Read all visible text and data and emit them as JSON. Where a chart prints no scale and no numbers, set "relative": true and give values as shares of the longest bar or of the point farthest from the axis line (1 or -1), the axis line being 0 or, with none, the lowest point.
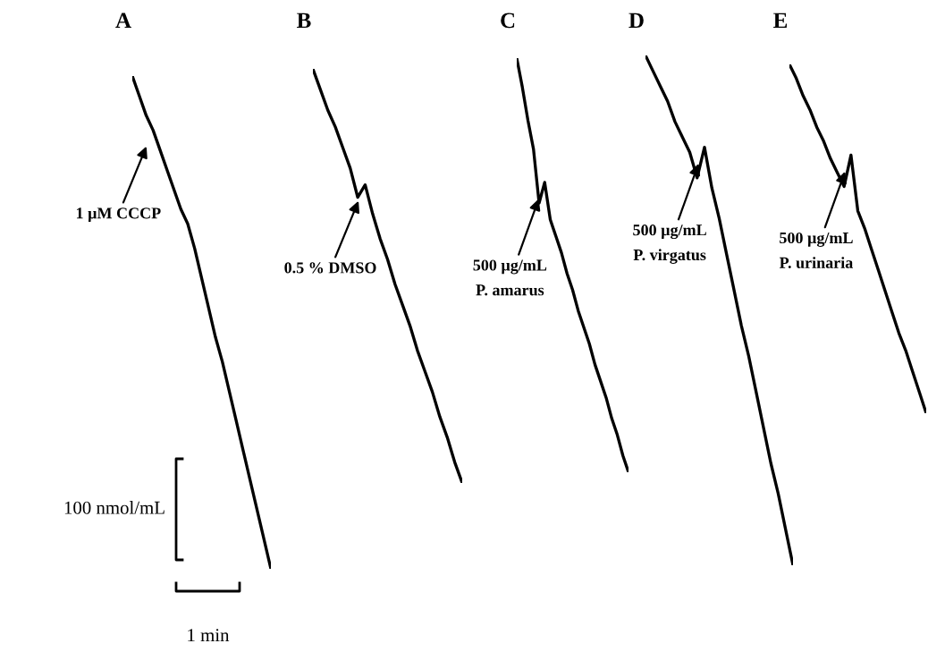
{
  "chart_data": [
    {
      "type": "line",
      "relative": true,
      "categories": [
        null,
        null,
        null,
        null,
        null,
        null,
        null,
        null,
        null,
        null,
        null,
        null,
        null,
        null,
        null,
        null,
        null,
        null,
        null,
        null,
        null
      ],
      "series": [
        {
          "name": "A",
          "color": "#000000",
          "values": [
            1.0,
            0.96,
            0.92,
            0.89,
            0.85,
            0.81,
            0.77,
            0.73,
            0.7,
            0.65,
            0.59,
            0.53,
            0.47,
            0.42,
            0.36,
            0.3,
            0.24,
            0.18,
            0.12,
            0.06,
            0.0
          ]
        }
      ],
      "annotations": [
        "1 µM CCCP"
      ]
    },
    {
      "type": "line",
      "relative": true,
      "categories": [
        null,
        null,
        null,
        null,
        null,
        null,
        null,
        null,
        null,
        null,
        null,
        null,
        null,
        null,
        null,
        null,
        null,
        null,
        null,
        null,
        null
      ],
      "series": [
        {
          "name": "B",
          "color": "#000000",
          "values": [
            1.0,
            0.95,
            0.9,
            0.86,
            0.81,
            0.76,
            0.69,
            0.72,
            0.65,
            0.59,
            0.54,
            0.48,
            0.43,
            0.38,
            0.32,
            0.27,
            0.22,
            0.16,
            0.11,
            0.05,
            0.0
          ]
        }
      ],
      "annotations": [
        "0.5 % DMSO"
      ]
    },
    {
      "type": "line",
      "relative": true,
      "categories": [
        null,
        null,
        null,
        null,
        null,
        null,
        null,
        null,
        null,
        null,
        null,
        null,
        null,
        null,
        null,
        null,
        null,
        null,
        null,
        null,
        null
      ],
      "series": [
        {
          "name": "C",
          "color": "#000000",
          "values": [
            1.0,
            0.93,
            0.85,
            0.78,
            0.65,
            0.7,
            0.61,
            0.57,
            0.53,
            0.48,
            0.44,
            0.39,
            0.35,
            0.31,
            0.26,
            0.22,
            0.18,
            0.13,
            0.09,
            0.04,
            0.0
          ]
        }
      ],
      "annotations": [
        "500 µg/mL\nP. amarus"
      ]
    },
    {
      "type": "line",
      "relative": true,
      "categories": [
        null,
        null,
        null,
        null,
        null,
        null,
        null,
        null,
        null,
        null,
        null,
        null,
        null,
        null,
        null,
        null,
        null,
        null,
        null,
        null,
        null
      ],
      "series": [
        {
          "name": "D",
          "color": "#000000",
          "values": [
            1.0,
            0.97,
            0.94,
            0.91,
            0.87,
            0.84,
            0.81,
            0.76,
            0.82,
            0.74,
            0.68,
            0.61,
            0.54,
            0.47,
            0.41,
            0.34,
            0.27,
            0.2,
            0.14,
            0.07,
            0.0
          ]
        }
      ],
      "annotations": [
        "500 µg/mL\nP. virgatus"
      ]
    },
    {
      "type": "line",
      "relative": true,
      "categories": [
        null,
        null,
        null,
        null,
        null,
        null,
        null,
        null,
        null,
        null,
        null,
        null,
        null,
        null,
        null,
        null,
        null,
        null,
        null,
        null,
        null
      ],
      "series": [
        {
          "name": "E",
          "color": "#000000",
          "values": [
            1.0,
            0.96,
            0.91,
            0.87,
            0.82,
            0.78,
            0.73,
            0.69,
            0.65,
            0.74,
            0.58,
            0.53,
            0.47,
            0.41,
            0.35,
            0.29,
            0.23,
            0.18,
            0.12,
            0.06,
            0.0
          ]
        }
      ],
      "annotations": [
        "500 µg/mL\nP. urinaria"
      ]
    },
    {
      "type": "other",
      "annotations": [
        "100 nmol/mL",
        "1 min"
      ]
    }
  ]
}
